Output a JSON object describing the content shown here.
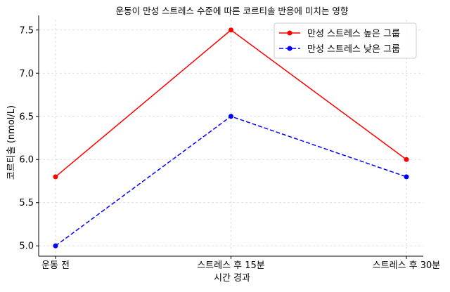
{
  "chart_data": {
    "type": "line",
    "title": "운동이 만성 스트레스 수준에 따른 코르티솔 반응에 미치는 영향",
    "xlabel": "시간 경과",
    "ylabel": "코르티솔 (nmol/L)",
    "categories": [
      "운동 전",
      "스트레스 후 15분",
      "스트레스 후 30분"
    ],
    "ylim": [
      4.88,
      7.62
    ],
    "yticks": [
      5.0,
      5.5,
      6.0,
      6.5,
      7.0,
      7.5
    ],
    "grid": true,
    "legend_position": "top-right",
    "series": [
      {
        "name": "만성 스트레스 높은 그룹",
        "values": [
          5.8,
          7.5,
          6.0
        ],
        "color": "#ff0000",
        "line_style": "solid",
        "marker": "circle"
      },
      {
        "name": "만성 스트레스 낮은 그룹",
        "values": [
          5.0,
          6.5,
          5.8
        ],
        "color": "#0000ff",
        "line_style": "dashed",
        "marker": "circle"
      }
    ]
  }
}
